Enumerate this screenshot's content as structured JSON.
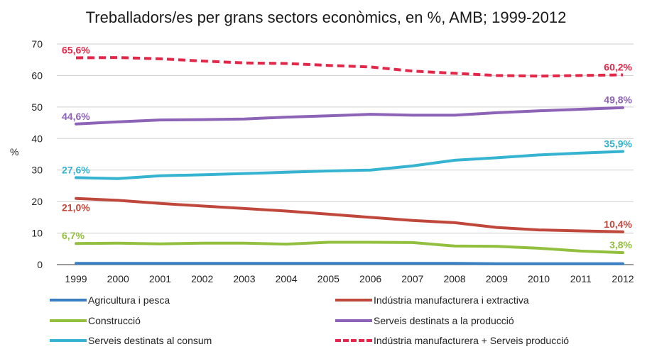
{
  "chart_data": {
    "type": "line",
    "title": "Treballadors/es per grans sectors econòmics, en %, AMB; 1999-2012",
    "ylabel": "%",
    "ylim": [
      0,
      70
    ],
    "yticks": [
      "0",
      "10",
      "20",
      "30",
      "40",
      "50",
      "60",
      "70"
    ],
    "categories": [
      "1999",
      "2000",
      "2001",
      "2002",
      "2003",
      "2004",
      "2005",
      "2006",
      "2007",
      "2008",
      "2009",
      "2010",
      "2011",
      "2012"
    ],
    "grid": true,
    "legend_position": "bottom",
    "series": [
      {
        "name": "Agricultura i pesca",
        "color": "#3a7fc1",
        "dashed": false,
        "values": [
          0.4,
          0.4,
          0.4,
          0.4,
          0.4,
          0.4,
          0.4,
          0.4,
          0.4,
          0.4,
          0.3,
          0.3,
          0.3,
          0.3
        ],
        "start_label": "",
        "end_label": ""
      },
      {
        "name": "Indústria manufacturera  i extractiva",
        "color": "#c0473b",
        "dashed": false,
        "values": [
          21.0,
          20.4,
          19.4,
          18.6,
          17.8,
          17.0,
          16.0,
          15.0,
          14.0,
          13.3,
          11.8,
          11.0,
          10.7,
          10.4
        ],
        "start_label": "21,0%",
        "end_label": "10,4%"
      },
      {
        "name": "Construcció",
        "color": "#93bf3f",
        "dashed": false,
        "values": [
          6.7,
          6.8,
          6.6,
          6.8,
          6.8,
          6.5,
          7.1,
          7.1,
          7.0,
          5.9,
          5.8,
          5.2,
          4.3,
          3.8
        ],
        "start_label": "6,7%",
        "end_label": "3,8%"
      },
      {
        "name": "Serveis destinats a la producció",
        "color": "#8c63b7",
        "dashed": false,
        "values": [
          44.6,
          45.3,
          45.9,
          46.0,
          46.2,
          46.8,
          47.2,
          47.7,
          47.4,
          47.4,
          48.2,
          48.8,
          49.3,
          49.8
        ],
        "start_label": "44,6%",
        "end_label": "49,8%"
      },
      {
        "name": "Serveis destinats al consum",
        "color": "#35b3d0",
        "dashed": false,
        "values": [
          27.6,
          27.3,
          28.2,
          28.5,
          28.9,
          29.3,
          29.7,
          30.0,
          31.3,
          33.1,
          33.9,
          34.8,
          35.4,
          35.9
        ],
        "start_label": "27,6%",
        "end_label": "35,9%"
      },
      {
        "name": "Indústria manufacturera + Serveis producció",
        "color": "#e52648",
        "dashed": true,
        "values": [
          65.6,
          65.7,
          65.3,
          64.6,
          64.0,
          63.8,
          63.2,
          62.7,
          61.4,
          60.7,
          60.0,
          59.8,
          60.0,
          60.2
        ],
        "start_label": "65,6%",
        "end_label": "60,2%"
      }
    ]
  }
}
